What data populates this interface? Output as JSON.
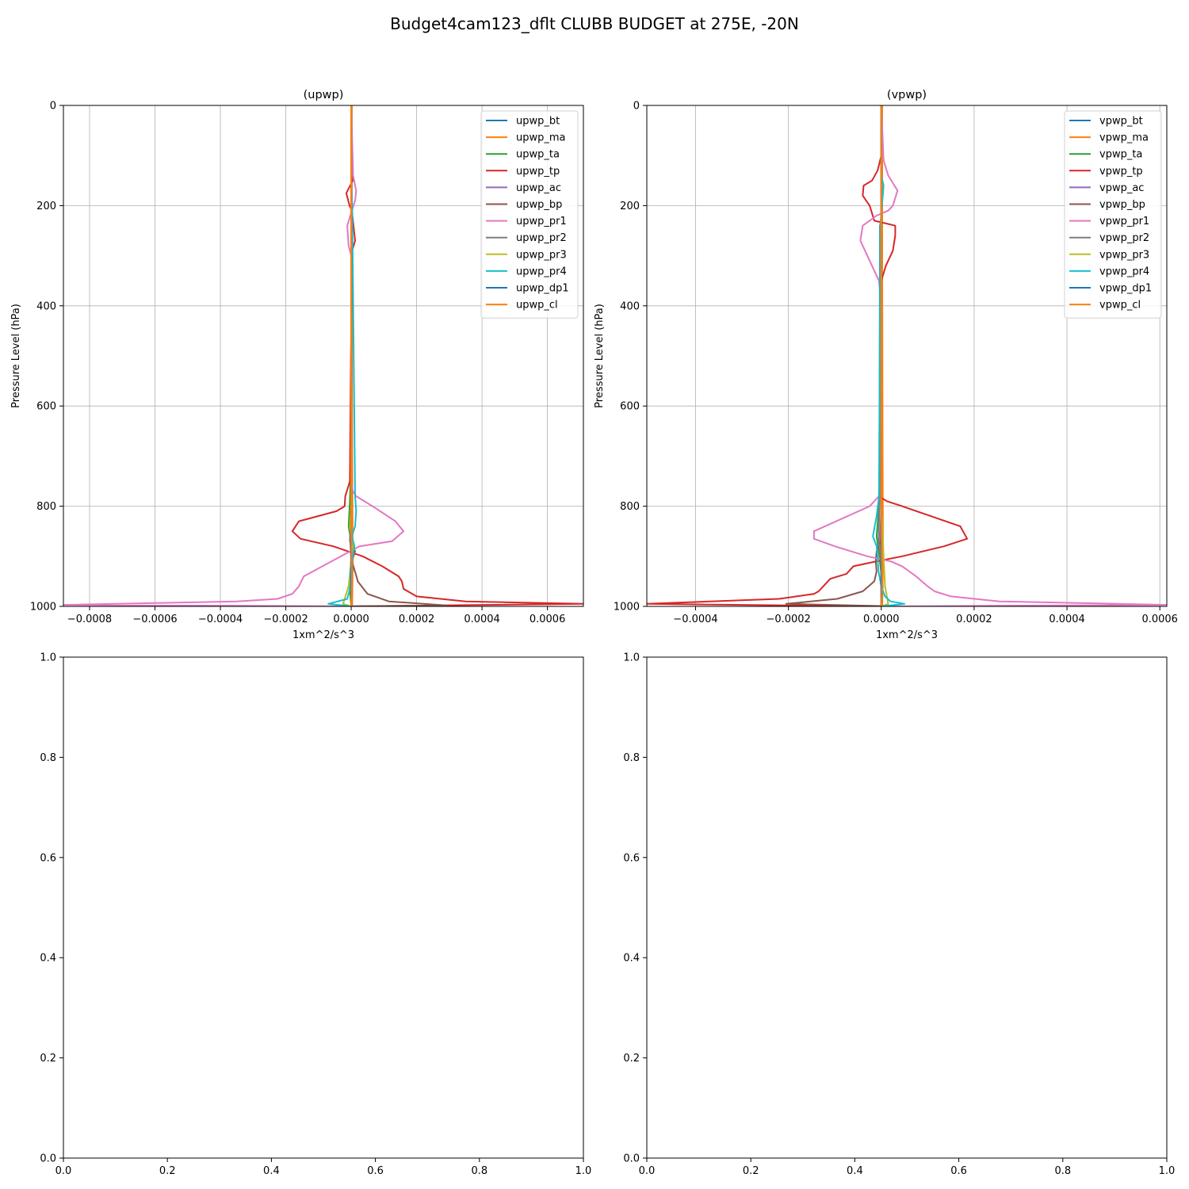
{
  "figure": {
    "suptitle": "Budget4cam123_dflt CLUBB BUDGET at 275E, -20N"
  },
  "chart_data": [
    {
      "type": "line",
      "title": "(upwp)",
      "xlabel": "1xm^2/s^3",
      "ylabel": "Pressure Level (hPa)",
      "xlim": [
        -0.00088,
        0.00071
      ],
      "ylim": [
        1000,
        0
      ],
      "y_inverted": true,
      "grid": true,
      "legend": "upper right",
      "xticks": [
        -0.0008,
        -0.0006,
        -0.0004,
        -0.0002,
        0,
        0.0002,
        0.0004,
        0.0006
      ],
      "xtick_labels": [
        "−0.0008",
        "−0.0006",
        "−0.0004",
        "−0.0002",
        "0.0000",
        "0.0002",
        "0.0004",
        "0.0006"
      ],
      "yticks": [
        0,
        200,
        400,
        600,
        800,
        1000
      ],
      "ytick_labels": [
        "0",
        "200",
        "400",
        "600",
        "800",
        "1000"
      ],
      "series": [
        {
          "name": "upwp_bt",
          "color": "#1f77b4",
          "x": [
            0,
            0,
            0,
            0
          ],
          "y": [
            0,
            500,
            900,
            1000
          ]
        },
        {
          "name": "upwp_ma",
          "color": "#ff7f0e",
          "x": [
            2e-06,
            2e-06,
            3e-06,
            5e-06,
            3e-06
          ],
          "y": [
            0,
            300,
            700,
            900,
            1000
          ]
        },
        {
          "name": "upwp_ta",
          "color": "#2ca02c",
          "x": [
            0,
            0,
            -4e-06,
            -8e-06,
            2e-06,
            -5e-06,
            0
          ],
          "y": [
            0,
            700,
            790,
            840,
            880,
            960,
            1000
          ]
        },
        {
          "name": "upwp_tp",
          "color": "#d62728",
          "x": [
            0,
            1e-06,
            5e-06,
            -3e-06,
            -1.5e-05,
            -5e-06,
            2e-06,
            1.2e-05,
            3e-06,
            -1e-06,
            -4e-06,
            -1.8e-05,
            -2e-05,
            -4.5e-05,
            -0.00016,
            -0.00018,
            -0.000155,
            -5.5e-05,
            3.5e-05,
            9.5e-05,
            0.000145,
            0.000155,
            0.00016,
            0.0002,
            0.00035,
            0.00071,
            -2e-05
          ],
          "y": [
            0,
            100,
            150,
            160,
            175,
            200,
            210,
            270,
            290,
            500,
            750,
            780,
            800,
            810,
            830,
            850,
            865,
            880,
            900,
            920,
            940,
            950,
            965,
            980,
            990,
            995,
            1000
          ]
        },
        {
          "name": "upwp_ac",
          "color": "#9467bd",
          "x": [
            0,
            0,
            -2e-06,
            3e-06,
            0
          ],
          "y": [
            0,
            800,
            880,
            950,
            1000
          ]
        },
        {
          "name": "upwp_bp",
          "color": "#8c564b",
          "x": [
            0,
            0,
            -4e-06,
            1.2e-05,
            2e-06,
            1.6e-05,
            2e-05,
            5e-05,
            0.000115,
            0.00029,
            -3e-05
          ],
          "y": [
            0,
            800,
            870,
            890,
            910,
            940,
            950,
            975,
            990,
            998,
            1000
          ]
        },
        {
          "name": "upwp_pr1",
          "color": "#e377c2",
          "x": [
            0,
            6e-06,
            1.5e-05,
            1.2e-05,
            2e-06,
            -1.2e-05,
            -8e-06,
            0,
            0,
            5e-06,
            1.5e-05,
            6.5e-05,
            0.000135,
            0.00016,
            0.000125,
            2.5e-05,
            -6e-05,
            -0.000145,
            -0.00016,
            -0.00018,
            -0.000225,
            -0.00035,
            -0.00088,
            0
          ],
          "y": [
            0,
            140,
            170,
            190,
            210,
            240,
            280,
            300,
            750,
            770,
            780,
            800,
            830,
            850,
            870,
            880,
            910,
            940,
            960,
            975,
            985,
            990,
            997,
            1000
          ]
        },
        {
          "name": "upwp_pr2",
          "color": "#7f7f7f",
          "x": [
            0,
            0,
            -3e-06,
            4e-06,
            0
          ],
          "y": [
            0,
            800,
            870,
            920,
            1000
          ]
        },
        {
          "name": "upwp_pr3",
          "color": "#bcbd22",
          "x": [
            0,
            0,
            -4e-06,
            5e-06,
            -8e-06,
            -2.5e-05,
            0
          ],
          "y": [
            0,
            800,
            840,
            880,
            960,
            995,
            1000
          ]
        },
        {
          "name": "upwp_pr4",
          "color": "#17becf",
          "x": [
            0,
            0,
            3e-06,
            1.2e-05,
            1.5e-05,
            1.2e-05,
            2e-06,
            1e-05,
            5e-06,
            -3e-06,
            -2e-06,
            -1.2e-05,
            -7e-05,
            0
          ],
          "y": [
            0,
            150,
            200,
            780,
            810,
            840,
            860,
            880,
            900,
            930,
            960,
            985,
            995,
            1000
          ]
        },
        {
          "name": "upwp_dp1",
          "color": "#1f77b4",
          "x": [
            0,
            0,
            0,
            0
          ],
          "y": [
            0,
            700,
            900,
            1000
          ]
        },
        {
          "name": "upwp_cl",
          "color": "#ff7f0e",
          "x": [
            0,
            0,
            2e-06,
            0
          ],
          "y": [
            0,
            800,
            950,
            1000
          ]
        }
      ]
    },
    {
      "type": "line",
      "title": "(vpwp)",
      "xlabel": "1xm^2/s^3",
      "ylabel": "Pressure Level (hPa)",
      "xlim": [
        -0.000505,
        0.000615
      ],
      "ylim": [
        1000,
        0
      ],
      "y_inverted": true,
      "grid": true,
      "legend": "upper right",
      "xticks": [
        -0.0004,
        -0.0002,
        0,
        0.0002,
        0.0004,
        0.0006
      ],
      "xtick_labels": [
        "−0.0004",
        "−0.0002",
        "0.0000",
        "0.0002",
        "0.0004",
        "0.0006"
      ],
      "yticks": [
        0,
        200,
        400,
        600,
        800,
        1000
      ],
      "ytick_labels": [
        "0",
        "200",
        "400",
        "600",
        "800",
        "1000"
      ],
      "series": [
        {
          "name": "vpwp_bt",
          "color": "#1f77b4",
          "x": [
            0,
            0,
            0,
            0
          ],
          "y": [
            0,
            500,
            900,
            1000
          ]
        },
        {
          "name": "vpwp_ma",
          "color": "#ff7f0e",
          "x": [
            2e-06,
            2e-06,
            3e-06,
            4e-06,
            2e-06
          ],
          "y": [
            0,
            300,
            700,
            900,
            1000
          ]
        },
        {
          "name": "vpwp_ta",
          "color": "#2ca02c",
          "x": [
            0,
            0,
            -5e-06,
            -1e-05,
            -4e-06,
            3e-06,
            0
          ],
          "y": [
            0,
            700,
            800,
            860,
            900,
            960,
            1000
          ]
        },
        {
          "name": "vpwp_tp",
          "color": "#d62728",
          "x": [
            0,
            0,
            -8e-06,
            -2e-05,
            -3.8e-05,
            -4e-05,
            -2.5e-05,
            -1.5e-05,
            3e-05,
            3e-05,
            2.5e-05,
            1e-05,
            0,
            0,
            -5e-06,
            -5e-06,
            1.2e-05,
            4.5e-05,
            0.00017,
            0.000185,
            0.000135,
            4.5e-05,
            -1e-05,
            -6e-05,
            -7.5e-05,
            -0.00011,
            -0.000125,
            -0.000135,
            -0.000145,
            -0.00022,
            -0.000505,
            0
          ],
          "y": [
            0,
            100,
            130,
            150,
            160,
            180,
            200,
            230,
            240,
            260,
            290,
            320,
            350,
            750,
            770,
            780,
            790,
            800,
            840,
            865,
            880,
            900,
            910,
            920,
            935,
            945,
            960,
            970,
            975,
            985,
            995,
            1000
          ]
        },
        {
          "name": "vpwp_ac",
          "color": "#9467bd",
          "x": [
            0,
            0,
            -3e-06,
            2e-06,
            0
          ],
          "y": [
            0,
            800,
            880,
            950,
            1000
          ]
        },
        {
          "name": "vpwp_bp",
          "color": "#8c564b",
          "x": [
            0,
            0,
            3e-06,
            -1e-05,
            -1.2e-05,
            -1e-05,
            -1.5e-05,
            -4e-05,
            -9.5e-05,
            -0.000205,
            3e-05
          ],
          "y": [
            0,
            800,
            860,
            890,
            910,
            930,
            950,
            970,
            985,
            995,
            1000
          ]
        },
        {
          "name": "vpwp_pr1",
          "color": "#e377c2",
          "x": [
            0,
            5e-06,
            1.5e-05,
            3.5e-05,
            2.5e-05,
            1.5e-05,
            -1e-05,
            -4e-05,
            -4.5e-05,
            -3e-05,
            -1.5e-05,
            -5e-06,
            0,
            0,
            -5e-06,
            -2.5e-05,
            -0.000145,
            -0.000145,
            -0.0001,
            -3e-05,
            2e-05,
            4.5e-05,
            7.5e-05,
            0.0001,
            0.000115,
            0.00015,
            0.000255,
            0.000615,
            0
          ],
          "y": [
            0,
            110,
            140,
            170,
            200,
            210,
            220,
            240,
            270,
            300,
            330,
            350,
            400,
            750,
            780,
            800,
            850,
            865,
            880,
            900,
            910,
            920,
            940,
            960,
            970,
            980,
            990,
            997,
            1000
          ]
        },
        {
          "name": "vpwp_pr2",
          "color": "#7f7f7f",
          "x": [
            0,
            0,
            -3e-06,
            -4e-06,
            -6e-06,
            2e-06,
            0
          ],
          "y": [
            0,
            230,
            240,
            800,
            870,
            930,
            1000
          ]
        },
        {
          "name": "vpwp_pr3",
          "color": "#bcbd22",
          "x": [
            0,
            0,
            3e-06,
            5e-06,
            8e-06,
            1.5e-05,
            0
          ],
          "y": [
            0,
            800,
            850,
            900,
            960,
            995,
            1000
          ]
        },
        {
          "name": "vpwp_pr4",
          "color": "#17becf",
          "x": [
            0,
            0,
            5e-06,
            -2e-06,
            -5e-06,
            -1e-05,
            -1.8e-05,
            -1e-05,
            -8e-06,
            -6e-06,
            0,
            8e-06,
            2e-05,
            5e-05,
            0
          ],
          "y": [
            0,
            140,
            160,
            240,
            780,
            820,
            860,
            880,
            900,
            930,
            960,
            980,
            990,
            995,
            1000
          ]
        },
        {
          "name": "vpwp_dp1",
          "color": "#1f77b4",
          "x": [
            0,
            0,
            0,
            0
          ],
          "y": [
            0,
            700,
            900,
            1000
          ]
        },
        {
          "name": "vpwp_cl",
          "color": "#ff7f0e",
          "x": [
            0,
            0,
            2e-06,
            0
          ],
          "y": [
            0,
            800,
            950,
            1000
          ]
        }
      ]
    },
    {
      "type": "line",
      "title": "",
      "xlabel": "",
      "ylabel": "",
      "xlim": [
        0,
        1
      ],
      "ylim": [
        0,
        1
      ],
      "grid": false,
      "xticks": [
        0,
        0.2,
        0.4,
        0.6,
        0.8,
        1.0
      ],
      "xtick_labels": [
        "0.0",
        "0.2",
        "0.4",
        "0.6",
        "0.8",
        "1.0"
      ],
      "yticks": [
        0,
        0.2,
        0.4,
        0.6,
        0.8,
        1.0
      ],
      "ytick_labels": [
        "0.0",
        "0.2",
        "0.4",
        "0.6",
        "0.8",
        "1.0"
      ],
      "series": []
    },
    {
      "type": "line",
      "title": "",
      "xlabel": "",
      "ylabel": "",
      "xlim": [
        0,
        1
      ],
      "ylim": [
        0,
        1
      ],
      "grid": false,
      "xticks": [
        0,
        0.2,
        0.4,
        0.6,
        0.8,
        1.0
      ],
      "xtick_labels": [
        "0.0",
        "0.2",
        "0.4",
        "0.6",
        "0.8",
        "1.0"
      ],
      "yticks": [
        0,
        0.2,
        0.4,
        0.6,
        0.8,
        1.0
      ],
      "ytick_labels": [
        "0.0",
        "0.2",
        "0.4",
        "0.6",
        "0.8",
        "1.0"
      ],
      "series": []
    }
  ]
}
